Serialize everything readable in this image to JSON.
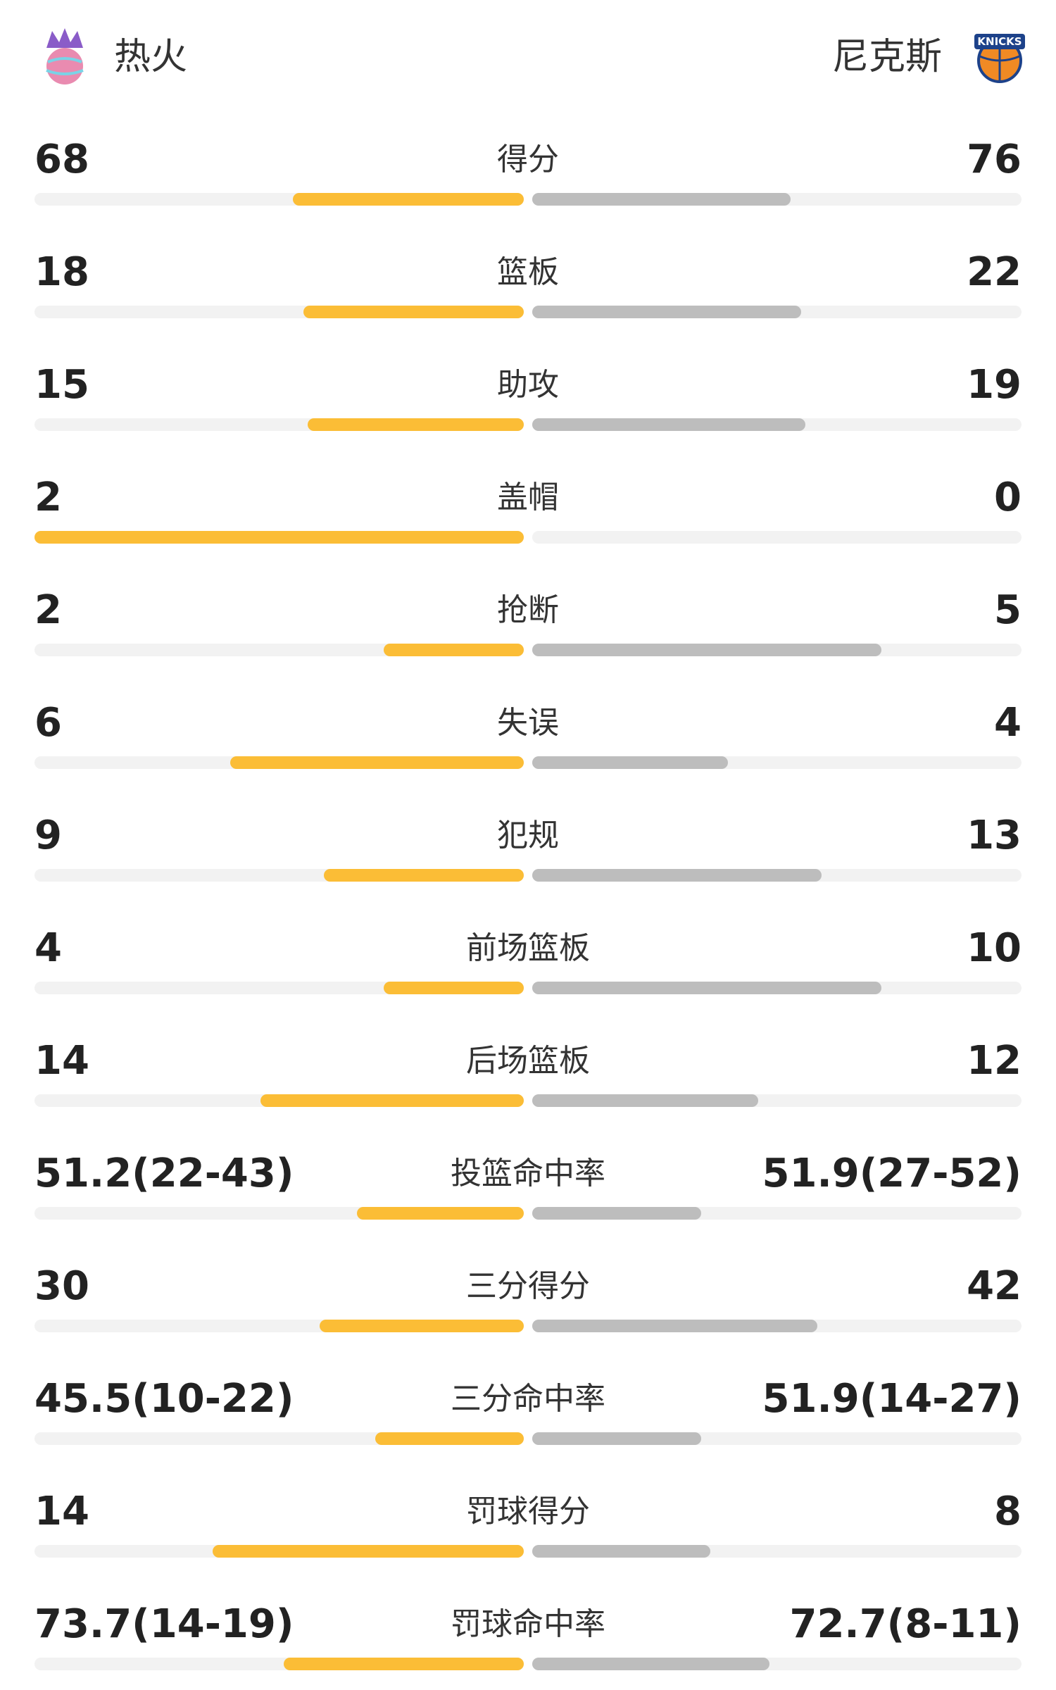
{
  "header": {
    "left_team": "热火",
    "right_team": "尼克斯",
    "right_logo_text": "KNICKS"
  },
  "rows": [
    {
      "label": "得分",
      "left": 68,
      "right": 76
    },
    {
      "label": "篮板",
      "left": 18,
      "right": 22
    },
    {
      "label": "助攻",
      "left": 15,
      "right": 19
    },
    {
      "label": "盖帽",
      "left": 2,
      "right": 0
    },
    {
      "label": "抢断",
      "left": 2,
      "right": 5
    },
    {
      "label": "失误",
      "left": 6,
      "right": 4
    },
    {
      "label": "犯规",
      "left": 9,
      "right": 13
    },
    {
      "label": "前场篮板",
      "left": 4,
      "right": 10
    },
    {
      "label": "后场篮板",
      "left": 14,
      "right": 12
    },
    {
      "label": "投篮命中率",
      "left": {
        "value": 51.2,
        "label": "51.2(22-43)"
      },
      "right": {
        "value": 51.9,
        "label": "51.9(27-52)"
      }
    },
    {
      "label": "三分得分",
      "left": 30,
      "right": 42
    },
    {
      "label": "三分命中率",
      "left": {
        "value": 45.5,
        "label": "45.5(10-22)"
      },
      "right": {
        "value": 51.9,
        "label": "51.9(14-27)"
      }
    },
    {
      "label": "罚球得分",
      "left": 14,
      "right": 8
    },
    {
      "label": "罚球命中率",
      "left": {
        "value": 73.7,
        "label": "73.7(14-19)"
      },
      "right": {
        "value": 72.7,
        "label": "72.7(8-11)"
      }
    }
  ]
}
